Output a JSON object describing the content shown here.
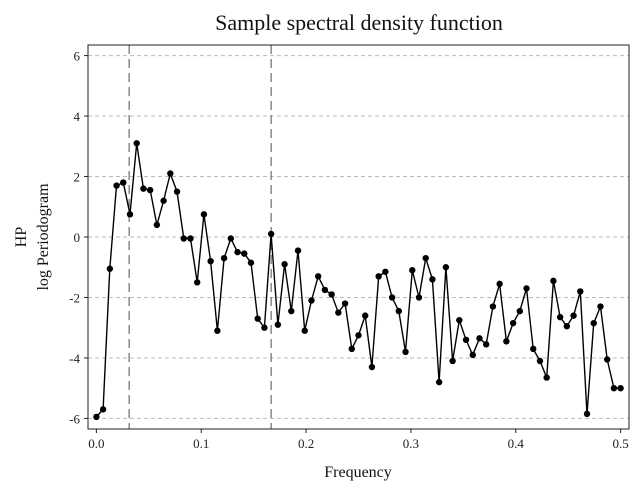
{
  "chart_data": {
    "type": "line",
    "title": "Sample spectral density function",
    "xlabel": "Frequency",
    "ylabel": [
      "HP",
      "log Periodogram"
    ],
    "xlim": [
      -0.008,
      0.508
    ],
    "ylim": [
      -6.35,
      6.35
    ],
    "xticks": [
      0.0,
      0.1,
      0.2,
      0.3,
      0.4,
      0.5
    ],
    "xtick_labels": [
      "0.0",
      "0.1",
      "0.2",
      "0.3",
      "0.4",
      "0.5"
    ],
    "yticks": [
      -6,
      -4,
      -2,
      0,
      2,
      4,
      6
    ],
    "ytick_labels": [
      "-6",
      "-4",
      "-2",
      "0",
      "2",
      "4",
      "6"
    ],
    "grid": "horizontal dashed",
    "vertical_reference_lines": [
      0.03125,
      0.16667
    ],
    "colors": {
      "line": "#000000",
      "grid": "#bbbbbb",
      "reference_line": "#777777"
    },
    "series": [
      {
        "x": [
          0.0,
          0.00641,
          0.01282,
          0.01923,
          0.02564,
          0.03205,
          0.03846,
          0.04487,
          0.05128,
          0.05769,
          0.0641,
          0.07051,
          0.07692,
          0.08333,
          0.08974,
          0.09615,
          0.10256,
          0.10897,
          0.11538,
          0.12179,
          0.12821,
          0.13462,
          0.14103,
          0.14744,
          0.15385,
          0.16026,
          0.16667,
          0.17308,
          0.17949,
          0.1859,
          0.19231,
          0.19872,
          0.20513,
          0.21154,
          0.21795,
          0.22436,
          0.23077,
          0.23718,
          0.24359,
          0.25,
          0.25641,
          0.26282,
          0.26923,
          0.27564,
          0.28205,
          0.28846,
          0.29487,
          0.30128,
          0.30769,
          0.3141,
          0.32051,
          0.32692,
          0.33333,
          0.33974,
          0.34615,
          0.35256,
          0.35897,
          0.36538,
          0.37179,
          0.37821,
          0.38462,
          0.39103,
          0.39744,
          0.40385,
          0.41026,
          0.41667,
          0.42308,
          0.42949,
          0.4359,
          0.44231,
          0.44872,
          0.45513,
          0.46154,
          0.46795,
          0.47436,
          0.48077,
          0.48718,
          0.49359,
          0.5
        ],
        "y": [
          -5.95,
          -5.7,
          -1.05,
          1.7,
          1.8,
          0.75,
          3.1,
          1.6,
          1.55,
          0.4,
          1.2,
          2.1,
          1.5,
          -0.05,
          -0.05,
          -1.5,
          0.75,
          -0.8,
          -3.1,
          -0.7,
          -0.05,
          -0.5,
          -0.55,
          -0.85,
          -2.7,
          -3.0,
          0.1,
          -2.9,
          -0.9,
          -2.45,
          -0.45,
          -3.1,
          -2.1,
          -1.3,
          -1.75,
          -1.9,
          -2.5,
          -2.2,
          -3.7,
          -3.25,
          -2.6,
          -4.3,
          -1.3,
          -1.15,
          -2.0,
          -2.45,
          -3.8,
          -1.1,
          -2.0,
          -0.7,
          -1.4,
          -4.8,
          -1.0,
          -4.1,
          -2.75,
          -3.4,
          -3.9,
          -3.35,
          -3.55,
          -2.3,
          -1.55,
          -3.45,
          -2.85,
          -2.45,
          -1.7,
          -3.7,
          -4.1,
          -4.65,
          -1.45,
          -2.65,
          -2.95,
          -2.6,
          -1.8,
          -5.85,
          -2.85,
          -2.3,
          -4.05,
          -5.0,
          -5.0
        ]
      }
    ]
  }
}
